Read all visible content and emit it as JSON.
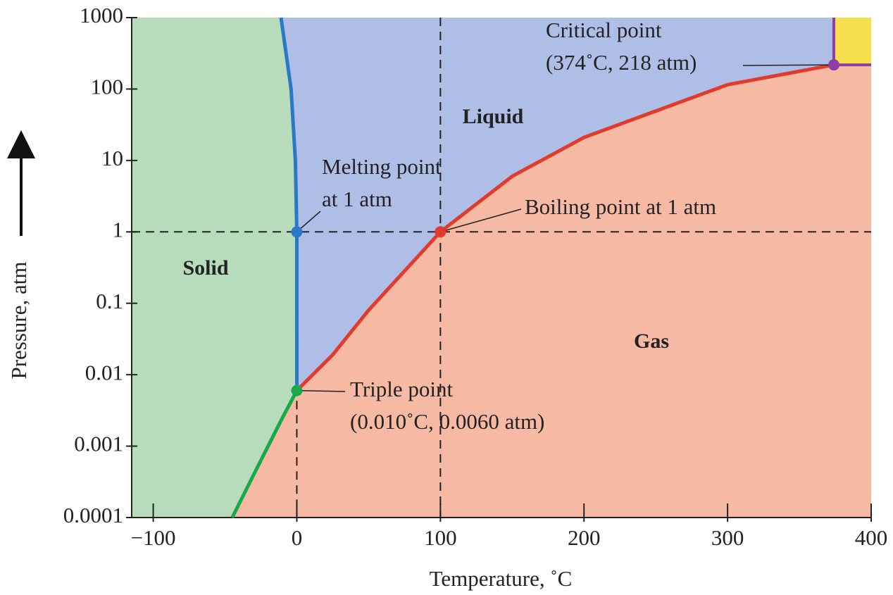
{
  "chart_data": {
    "type": "phase",
    "x_label": "Temperature, ˚C",
    "y_label": "Pressure, atm",
    "xlim": [
      -115,
      400
    ],
    "ylim": [
      0.0001,
      1000
    ],
    "yscale": "log",
    "xticks": [
      {
        "value": -100,
        "label": "−100"
      },
      0,
      100,
      200,
      300,
      400
    ],
    "yticks": [
      0.0001,
      0.001,
      0.01,
      0.1,
      1,
      10,
      100,
      1000
    ],
    "series": [
      {
        "color": "#19a84a",
        "x": [
          -45,
          -30,
          -20,
          -10,
          0.01
        ],
        "values": [
          0.0001,
          0.0004,
          0.001,
          0.0025,
          0.006
        ]
      },
      {
        "color": "#2a78c6",
        "x": [
          0.01,
          0,
          -1,
          -4,
          -11
        ],
        "values": [
          0.006,
          1,
          10,
          100,
          1000
        ]
      },
      {
        "color": "#e23a2b",
        "x": [
          0.01,
          25,
          50,
          100,
          150,
          200,
          300,
          374
        ],
        "values": [
          0.006,
          0.019,
          0.08,
          1,
          6,
          21,
          115,
          218
        ]
      }
    ],
    "critical_color": "#8e3fa6",
    "regions": [
      {
        "label": "Solid",
        "color": "#b7dcbc"
      },
      {
        "label": "Liquid",
        "color": "#afbee6"
      },
      {
        "label": "Gas",
        "color": "#f6b9a4"
      },
      {
        "color": "#f8df4e"
      }
    ],
    "points": [
      {
        "x": 0,
        "y": 1,
        "color": "#2a78c6",
        "label": [
          "Melting point",
          "at 1 atm"
        ]
      },
      {
        "x": 100,
        "y": 1,
        "color": "#e23a2b",
        "label": [
          "Boiling point at 1 atm"
        ]
      },
      {
        "x": 0.01,
        "y": 0.006,
        "color": "#19a84a",
        "label": [
          "Triple point",
          "(0.010˚C, 0.0060 atm)"
        ]
      },
      {
        "x": 374,
        "y": 218,
        "color": "#8e3fa6",
        "label": [
          "Critical point",
          "(374˚C, 218 atm)"
        ]
      }
    ]
  }
}
